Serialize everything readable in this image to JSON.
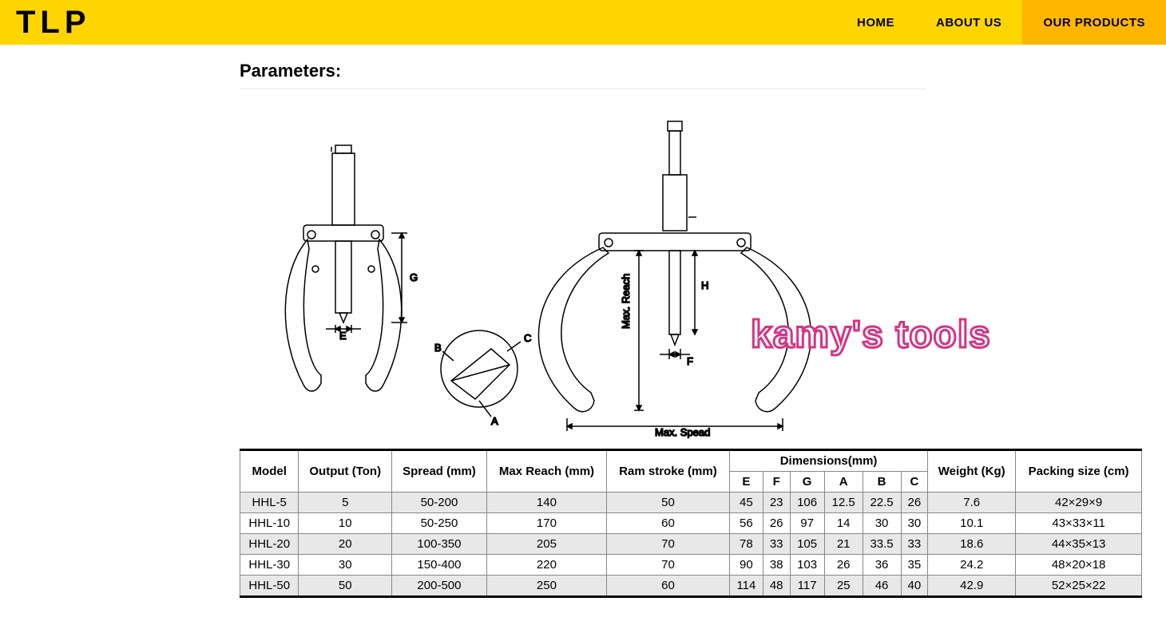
{
  "header": {
    "logo": "TLP",
    "nav": [
      {
        "label": "HOME",
        "active": false
      },
      {
        "label": "ABOUT US",
        "active": false
      },
      {
        "label": "OUR PRODUCTS",
        "active": true
      }
    ]
  },
  "section": {
    "title": "Parameters:"
  },
  "watermark": "kamy's tools",
  "diagram_labels": {
    "E": "E",
    "G": "G",
    "A": "A",
    "B": "B",
    "C": "C",
    "F": "F",
    "H": "H",
    "max_reach": "Max. Reach",
    "max_spread": "Max. Spead"
  },
  "table": {
    "columns": {
      "model": "Model",
      "output": "Output (Ton)",
      "spread": "Spread (mm)",
      "max_reach": "Max Reach (mm)",
      "ram_stroke": "Ram stroke (mm)",
      "dimensions": "Dimensions(mm)",
      "dim_sub": [
        "E",
        "F",
        "G",
        "A",
        "B",
        "C"
      ],
      "weight": "Weight (Kg)",
      "packing": "Packing size (cm)"
    },
    "rows": [
      {
        "model": "HHL-5",
        "output": "5",
        "spread": "50-200",
        "max_reach": "140",
        "ram_stroke": "50",
        "E": "45",
        "F": "23",
        "G": "106",
        "A": "12.5",
        "B": "22.5",
        "C": "26",
        "weight": "7.6",
        "packing": "42×29×9"
      },
      {
        "model": "HHL-10",
        "output": "10",
        "spread": "50-250",
        "max_reach": "170",
        "ram_stroke": "60",
        "E": "56",
        "F": "26",
        "G": "97",
        "A": "14",
        "B": "30",
        "C": "30",
        "weight": "10.1",
        "packing": "43×33×11"
      },
      {
        "model": "HHL-20",
        "output": "20",
        "spread": "100-350",
        "max_reach": "205",
        "ram_stroke": "70",
        "E": "78",
        "F": "33",
        "G": "105",
        "A": "21",
        "B": "33.5",
        "C": "33",
        "weight": "18.6",
        "packing": "44×35×13"
      },
      {
        "model": "HHL-30",
        "output": "30",
        "spread": "150-400",
        "max_reach": "220",
        "ram_stroke": "70",
        "E": "90",
        "F": "38",
        "G": "103",
        "A": "26",
        "B": "36",
        "C": "35",
        "weight": "24.2",
        "packing": "48×20×18"
      },
      {
        "model": "HHL-50",
        "output": "50",
        "spread": "200-500",
        "max_reach": "250",
        "ram_stroke": "60",
        "E": "114",
        "F": "48",
        "G": "117",
        "A": "25",
        "B": "46",
        "C": "40",
        "weight": "42.9",
        "packing": "52×25×22"
      }
    ],
    "alt_row_bg": "#e8e8e8",
    "border_color": "#888888",
    "heavy_border_color": "#000000"
  },
  "colors": {
    "header_bg": "#ffd500",
    "header_active_bg": "#ffb600",
    "watermark_stroke": "#d63384",
    "watermark_fill": "#ffffff"
  }
}
